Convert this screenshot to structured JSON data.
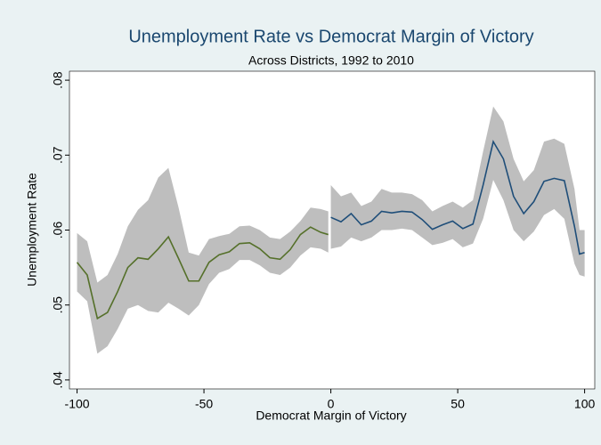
{
  "chart_data": {
    "type": "line",
    "title": "Unemployment Rate vs Democrat Margin of Victory",
    "subtitle": "Across Districts, 1992 to 2010",
    "x_label": "Democrat Margin of Victory",
    "y_label": "Unemployment Rate",
    "xlim": [
      -103,
      104
    ],
    "ylim": [
      0.0388,
      0.0812
    ],
    "xticks": [
      -100,
      -50,
      0,
      50,
      100
    ],
    "yticks": [
      {
        "value": 0.04,
        "label": ".04"
      },
      {
        "value": 0.05,
        "label": ".05"
      },
      {
        "value": 0.06,
        "label": ".06"
      },
      {
        "value": 0.07,
        "label": ".07"
      },
      {
        "value": 0.08,
        "label": ".08"
      }
    ],
    "grid": false,
    "band_color": "#bebebe",
    "series": [
      {
        "color": "#55702a",
        "x": [
          -100,
          -96,
          -92,
          -88,
          -84,
          -80,
          -76,
          -72,
          -68,
          -64,
          -60,
          -56,
          -52,
          -48,
          -44,
          -40,
          -36,
          -32,
          -28,
          -24,
          -20,
          -16,
          -12,
          -8,
          -4,
          -1
        ],
        "values": [
          0.0557,
          0.054,
          0.0482,
          0.049,
          0.0518,
          0.055,
          0.0563,
          0.0561,
          0.0575,
          0.0591,
          0.0562,
          0.0532,
          0.0532,
          0.0557,
          0.0567,
          0.0571,
          0.0582,
          0.0583,
          0.0575,
          0.0563,
          0.0561,
          0.0574,
          0.0594,
          0.0604,
          0.0597,
          0.0594
        ],
        "lower": [
          0.0518,
          0.0505,
          0.0435,
          0.0445,
          0.0468,
          0.0495,
          0.05,
          0.0492,
          0.049,
          0.0503,
          0.0495,
          0.0486,
          0.05,
          0.0528,
          0.0543,
          0.0548,
          0.056,
          0.056,
          0.0553,
          0.0543,
          0.054,
          0.055,
          0.0566,
          0.0577,
          0.0575,
          0.057
        ],
        "upper": [
          0.0596,
          0.0585,
          0.053,
          0.054,
          0.0568,
          0.0605,
          0.0627,
          0.064,
          0.067,
          0.0683,
          0.063,
          0.057,
          0.0566,
          0.0588,
          0.0592,
          0.0595,
          0.0605,
          0.0606,
          0.06,
          0.059,
          0.0588,
          0.0598,
          0.0612,
          0.063,
          0.0628,
          0.0625
        ]
      },
      {
        "color": "#1f4e79",
        "x": [
          0,
          4,
          8,
          12,
          16,
          20,
          24,
          28,
          32,
          36,
          40,
          44,
          48,
          52,
          56,
          60,
          64,
          68,
          72,
          76,
          80,
          84,
          88,
          92,
          96,
          98,
          100
        ],
        "values": [
          0.0617,
          0.0611,
          0.0622,
          0.0607,
          0.0612,
          0.0625,
          0.0623,
          0.0625,
          0.0624,
          0.0614,
          0.0601,
          0.0607,
          0.0612,
          0.0602,
          0.0608,
          0.066,
          0.0718,
          0.0695,
          0.0645,
          0.0622,
          0.0638,
          0.0665,
          0.0669,
          0.0666,
          0.0605,
          0.0568,
          0.057
        ],
        "lower": [
          0.0575,
          0.0578,
          0.059,
          0.0585,
          0.059,
          0.06,
          0.06,
          0.0602,
          0.06,
          0.059,
          0.058,
          0.0583,
          0.0588,
          0.0577,
          0.0582,
          0.0615,
          0.0667,
          0.064,
          0.06,
          0.0585,
          0.0598,
          0.062,
          0.0628,
          0.0615,
          0.0555,
          0.054,
          0.0538
        ],
        "upper": [
          0.066,
          0.0645,
          0.065,
          0.0632,
          0.0638,
          0.0655,
          0.065,
          0.065,
          0.0648,
          0.064,
          0.0625,
          0.0632,
          0.0638,
          0.063,
          0.064,
          0.0705,
          0.0765,
          0.0745,
          0.0695,
          0.0665,
          0.068,
          0.0718,
          0.0722,
          0.0715,
          0.0655,
          0.06,
          0.06
        ]
      }
    ]
  }
}
